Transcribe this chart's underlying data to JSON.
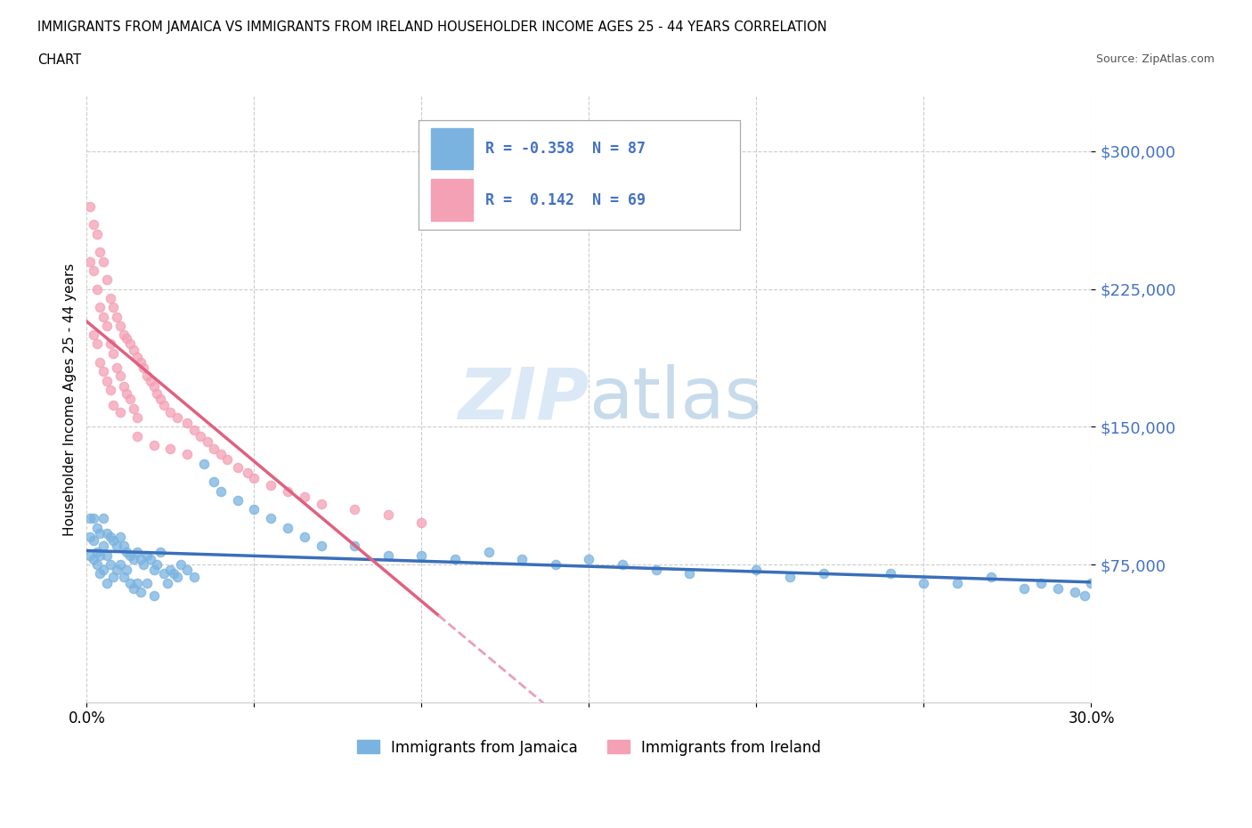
{
  "title_line1": "IMMIGRANTS FROM JAMAICA VS IMMIGRANTS FROM IRELAND HOUSEHOLDER INCOME AGES 25 - 44 YEARS CORRELATION",
  "title_line2": "CHART",
  "source": "Source: ZipAtlas.com",
  "ylabel": "Householder Income Ages 25 - 44 years",
  "xlim": [
    0.0,
    0.3
  ],
  "ylim": [
    0,
    330000
  ],
  "yticks": [
    75000,
    150000,
    225000,
    300000
  ],
  "ytick_labels": [
    "$75,000",
    "$150,000",
    "$225,000",
    "$300,000"
  ],
  "xticks": [
    0.0,
    0.05,
    0.1,
    0.15,
    0.2,
    0.25,
    0.3
  ],
  "jamaica_color": "#7ab3e0",
  "ireland_color": "#f4a0b5",
  "jamaica_line_color": "#3a6fba",
  "ireland_line_solid_color": "#e06080",
  "ireland_line_dashed_color": "#e8a0b8",
  "R_jamaica": -0.358,
  "N_jamaica": 87,
  "R_ireland": 0.142,
  "N_ireland": 69,
  "watermark": "ZIPatlas",
  "legend_label_jamaica": "Immigrants from Jamaica",
  "legend_label_ireland": "Immigrants from Ireland",
  "jamaica_scatter_x": [
    0.001,
    0.001,
    0.001,
    0.002,
    0.002,
    0.002,
    0.003,
    0.003,
    0.003,
    0.004,
    0.004,
    0.004,
    0.005,
    0.005,
    0.005,
    0.006,
    0.006,
    0.006,
    0.007,
    0.007,
    0.008,
    0.008,
    0.009,
    0.009,
    0.01,
    0.01,
    0.011,
    0.011,
    0.012,
    0.012,
    0.013,
    0.013,
    0.014,
    0.014,
    0.015,
    0.015,
    0.016,
    0.016,
    0.017,
    0.018,
    0.018,
    0.019,
    0.02,
    0.02,
    0.021,
    0.022,
    0.023,
    0.024,
    0.025,
    0.026,
    0.027,
    0.028,
    0.03,
    0.032,
    0.035,
    0.038,
    0.04,
    0.045,
    0.05,
    0.055,
    0.06,
    0.065,
    0.07,
    0.08,
    0.09,
    0.1,
    0.11,
    0.12,
    0.13,
    0.14,
    0.15,
    0.16,
    0.17,
    0.18,
    0.2,
    0.21,
    0.22,
    0.24,
    0.25,
    0.26,
    0.27,
    0.28,
    0.285,
    0.29,
    0.295,
    0.298,
    0.3
  ],
  "jamaica_scatter_y": [
    100000,
    90000,
    80000,
    100000,
    88000,
    78000,
    95000,
    82000,
    75000,
    92000,
    80000,
    70000,
    100000,
    85000,
    72000,
    92000,
    80000,
    65000,
    90000,
    75000,
    88000,
    68000,
    85000,
    72000,
    90000,
    75000,
    85000,
    68000,
    82000,
    72000,
    80000,
    65000,
    78000,
    62000,
    82000,
    65000,
    78000,
    60000,
    75000,
    80000,
    65000,
    78000,
    72000,
    58000,
    75000,
    82000,
    70000,
    65000,
    72000,
    70000,
    68000,
    75000,
    72000,
    68000,
    130000,
    120000,
    115000,
    110000,
    105000,
    100000,
    95000,
    90000,
    85000,
    85000,
    80000,
    80000,
    78000,
    82000,
    78000,
    75000,
    78000,
    75000,
    72000,
    70000,
    72000,
    68000,
    70000,
    70000,
    65000,
    65000,
    68000,
    62000,
    65000,
    62000,
    60000,
    58000,
    65000
  ],
  "ireland_scatter_x": [
    0.001,
    0.001,
    0.002,
    0.002,
    0.002,
    0.003,
    0.003,
    0.003,
    0.004,
    0.004,
    0.004,
    0.005,
    0.005,
    0.005,
    0.006,
    0.006,
    0.006,
    0.007,
    0.007,
    0.007,
    0.008,
    0.008,
    0.008,
    0.009,
    0.009,
    0.01,
    0.01,
    0.01,
    0.011,
    0.011,
    0.012,
    0.012,
    0.013,
    0.013,
    0.014,
    0.014,
    0.015,
    0.015,
    0.016,
    0.017,
    0.018,
    0.019,
    0.02,
    0.021,
    0.022,
    0.023,
    0.025,
    0.027,
    0.03,
    0.032,
    0.034,
    0.036,
    0.038,
    0.04,
    0.042,
    0.045,
    0.048,
    0.05,
    0.055,
    0.06,
    0.065,
    0.07,
    0.08,
    0.09,
    0.1,
    0.015,
    0.02,
    0.025,
    0.03
  ],
  "ireland_scatter_y": [
    270000,
    240000,
    260000,
    235000,
    200000,
    255000,
    225000,
    195000,
    245000,
    215000,
    185000,
    240000,
    210000,
    180000,
    230000,
    205000,
    175000,
    220000,
    195000,
    170000,
    215000,
    190000,
    162000,
    210000,
    182000,
    205000,
    178000,
    158000,
    200000,
    172000,
    198000,
    168000,
    195000,
    165000,
    192000,
    160000,
    188000,
    155000,
    185000,
    182000,
    178000,
    175000,
    172000,
    168000,
    165000,
    162000,
    158000,
    155000,
    152000,
    148000,
    145000,
    142000,
    138000,
    135000,
    132000,
    128000,
    125000,
    122000,
    118000,
    115000,
    112000,
    108000,
    105000,
    102000,
    98000,
    145000,
    140000,
    138000,
    135000
  ]
}
